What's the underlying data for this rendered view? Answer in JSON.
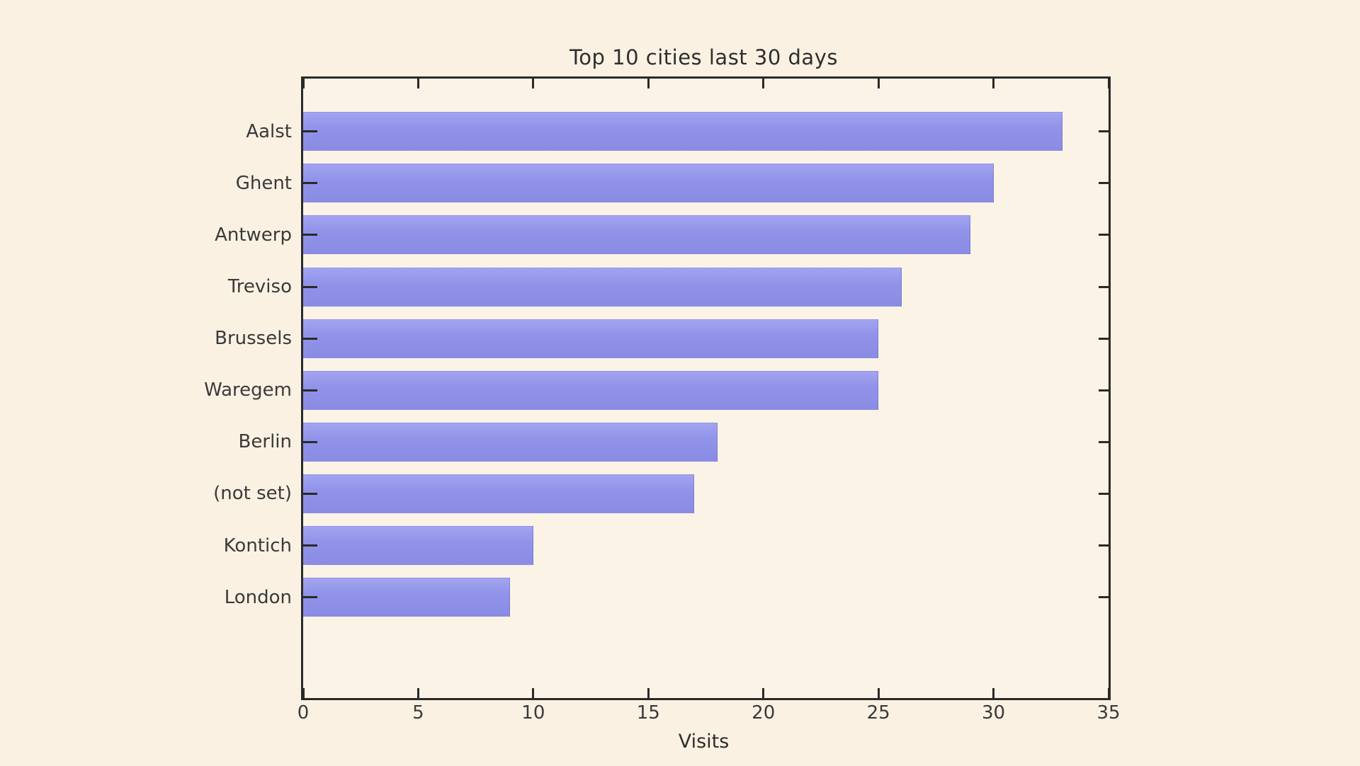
{
  "chart_data": {
    "type": "bar",
    "orientation": "horizontal",
    "title": "Top 10 cities last 30 days",
    "xlabel": "Visits",
    "ylabel": "",
    "categories": [
      "Aalst",
      "Ghent",
      "Antwerp",
      "Treviso",
      "Brussels",
      "Waregem",
      "Berlin",
      "(not set)",
      "Kontich",
      "London"
    ],
    "values": [
      33,
      30,
      29,
      26,
      25,
      25,
      18,
      17,
      10,
      9
    ],
    "xlim": [
      0,
      35
    ],
    "xticks": [
      0,
      5,
      10,
      15,
      20,
      25,
      30,
      35
    ],
    "grid": false,
    "legend": null,
    "colors": {
      "bar": "#9193e9",
      "background": "#faf1e2",
      "plot_background": "#fbf3e6",
      "axis": "#2a2a2a",
      "text": "#3a3a3a"
    }
  }
}
